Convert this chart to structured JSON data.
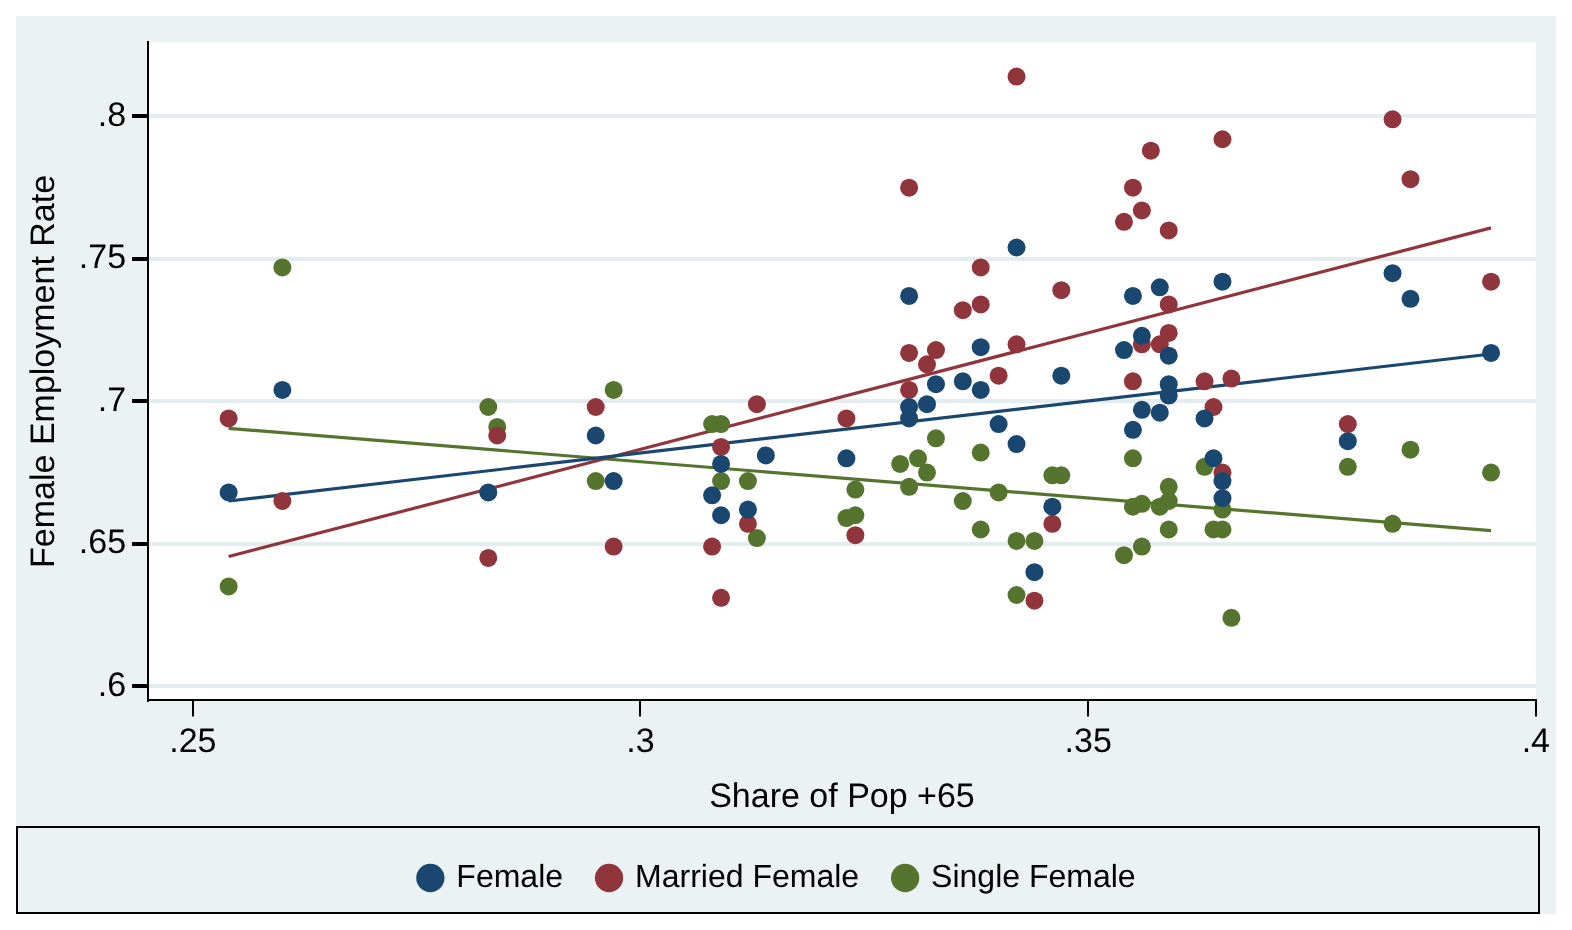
{
  "chart_data": {
    "type": "scatter",
    "xlabel": "Share of Pop +65",
    "ylabel": "Female Employment Rate",
    "xlim": [
      0.245,
      0.4
    ],
    "ylim": [
      0.595,
      0.826
    ],
    "xticks": [
      {
        "value": 0.25,
        "label": ".25"
      },
      {
        "value": 0.3,
        "label": ".3"
      },
      {
        "value": 0.35,
        "label": ".35"
      },
      {
        "value": 0.4,
        "label": ".4"
      }
    ],
    "yticks": [
      {
        "value": 0.6,
        "label": ".6"
      },
      {
        "value": 0.65,
        "label": ".65"
      },
      {
        "value": 0.7,
        "label": ".7"
      },
      {
        "value": 0.75,
        "label": ".75"
      },
      {
        "value": 0.8,
        "label": ".8"
      }
    ],
    "grid": "y",
    "legend": "bottom",
    "marker": "circle",
    "series": [
      {
        "name": "Female",
        "color": "#1a476f",
        "x": [
          0.254,
          0.26,
          0.283,
          0.295,
          0.297,
          0.308,
          0.309,
          0.309,
          0.312,
          0.314,
          0.323,
          0.33,
          0.33,
          0.33,
          0.332,
          0.333,
          0.336,
          0.338,
          0.338,
          0.34,
          0.342,
          0.342,
          0.346,
          0.344,
          0.347,
          0.354,
          0.355,
          0.356,
          0.355,
          0.356,
          0.358,
          0.358,
          0.359,
          0.359,
          0.359,
          0.363,
          0.364,
          0.365,
          0.365,
          0.365,
          0.379,
          0.384,
          0.386,
          0.395
        ],
        "values": [
          0.668,
          0.704,
          0.668,
          0.688,
          0.672,
          0.667,
          0.678,
          0.66,
          0.662,
          0.681,
          0.68,
          0.737,
          0.694,
          0.698,
          0.699,
          0.706,
          0.707,
          0.704,
          0.719,
          0.692,
          0.754,
          0.685,
          0.663,
          0.64,
          0.709,
          0.718,
          0.737,
          0.723,
          0.69,
          0.697,
          0.74,
          0.696,
          0.706,
          0.702,
          0.716,
          0.694,
          0.68,
          0.666,
          0.672,
          0.742,
          0.686,
          0.745,
          0.736,
          0.717
        ]
      },
      {
        "name": "Married Female",
        "color": "#90353b",
        "x": [
          0.254,
          0.26,
          0.284,
          0.283,
          0.295,
          0.297,
          0.308,
          0.309,
          0.309,
          0.312,
          0.313,
          0.323,
          0.324,
          0.33,
          0.33,
          0.33,
          0.332,
          0.333,
          0.336,
          0.338,
          0.338,
          0.34,
          0.342,
          0.342,
          0.347,
          0.346,
          0.344,
          0.357,
          0.355,
          0.356,
          0.354,
          0.359,
          0.365,
          0.359,
          0.359,
          0.356,
          0.358,
          0.355,
          0.363,
          0.366,
          0.364,
          0.365,
          0.379,
          0.384,
          0.386,
          0.395
        ],
        "values": [
          0.694,
          0.665,
          0.688,
          0.645,
          0.698,
          0.649,
          0.649,
          0.684,
          0.631,
          0.657,
          0.699,
          0.694,
          0.653,
          0.775,
          0.704,
          0.717,
          0.713,
          0.718,
          0.732,
          0.734,
          0.747,
          0.709,
          0.72,
          0.814,
          0.739,
          0.657,
          0.63,
          0.788,
          0.775,
          0.767,
          0.763,
          0.76,
          0.792,
          0.734,
          0.724,
          0.72,
          0.72,
          0.707,
          0.707,
          0.708,
          0.698,
          0.675,
          0.692,
          0.799,
          0.778,
          0.742
        ]
      },
      {
        "name": "Single Female",
        "color": "#55752f",
        "x": [
          0.26,
          0.254,
          0.283,
          0.284,
          0.295,
          0.297,
          0.308,
          0.309,
          0.309,
          0.312,
          0.313,
          0.323,
          0.324,
          0.324,
          0.329,
          0.331,
          0.332,
          0.33,
          0.333,
          0.338,
          0.336,
          0.338,
          0.34,
          0.346,
          0.347,
          0.342,
          0.342,
          0.344,
          0.355,
          0.355,
          0.356,
          0.358,
          0.359,
          0.359,
          0.359,
          0.354,
          0.356,
          0.363,
          0.364,
          0.365,
          0.365,
          0.366,
          0.379,
          0.386,
          0.384,
          0.395
        ],
        "values": [
          0.747,
          0.635,
          0.698,
          0.691,
          0.672,
          0.704,
          0.692,
          0.692,
          0.672,
          0.672,
          0.652,
          0.659,
          0.66,
          0.669,
          0.678,
          0.68,
          0.675,
          0.67,
          0.687,
          0.682,
          0.665,
          0.655,
          0.668,
          0.674,
          0.674,
          0.632,
          0.651,
          0.651,
          0.68,
          0.663,
          0.664,
          0.663,
          0.665,
          0.67,
          0.655,
          0.646,
          0.649,
          0.677,
          0.655,
          0.655,
          0.662,
          0.624,
          0.677,
          0.683,
          0.657,
          0.675
        ]
      },
      {
        "type": "line",
        "marker": "none",
        "color": "#1a476f",
        "x": [
          0.254,
          0.395
        ],
        "values": [
          0.665,
          0.7166
        ]
      },
      {
        "type": "line",
        "marker": "none",
        "color": "#90353b",
        "x": [
          0.254,
          0.395
        ],
        "values": [
          0.6455,
          0.7609
        ]
      },
      {
        "type": "line",
        "marker": "none",
        "color": "#55752f",
        "x": [
          0.254,
          0.395
        ],
        "values": [
          0.6905,
          0.6546
        ]
      }
    ]
  }
}
